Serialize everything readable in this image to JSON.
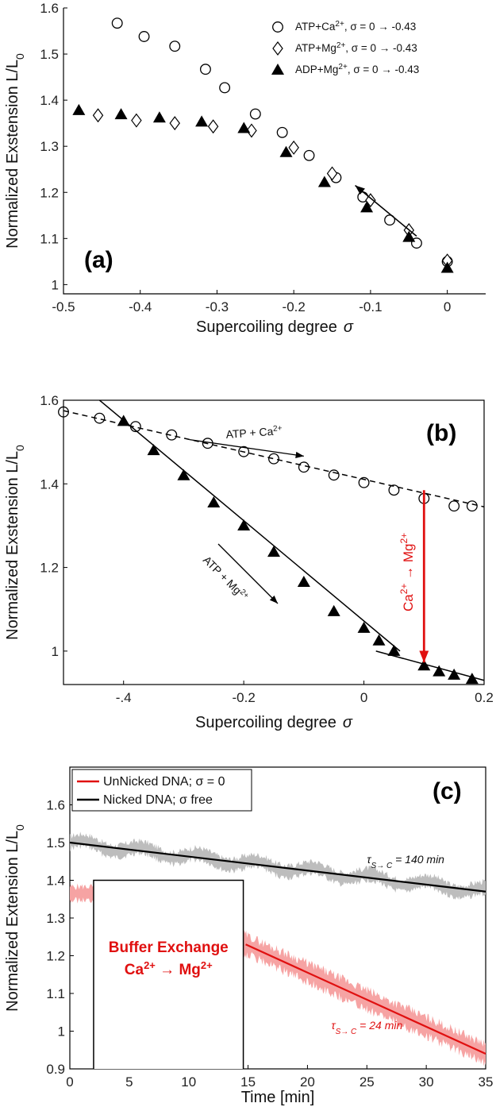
{
  "colors": {
    "red": "#e01010",
    "red_band": "#f6a3a3",
    "gray_band": "#bdbdbd",
    "black": "#000000"
  },
  "chart_data": [
    {
      "type": "scatter",
      "panel_label": "(a)",
      "xlabel": "Supercoiling degree",
      "xlabel_symbol": "σ",
      "ylabel": "Normalized Exstension  L/L",
      "ylabel_sub": "0",
      "xlim": [
        -0.5,
        0.05
      ],
      "ylim": [
        0.98,
        1.6
      ],
      "xticks": [
        -0.5,
        -0.4,
        -0.3,
        -0.2,
        -0.1,
        0
      ],
      "xtick_labels": [
        "-0.5",
        "-0.4",
        "-0.3",
        "-0.2",
        "-0.1",
        "0"
      ],
      "yticks": [
        1,
        1.1,
        1.2,
        1.3,
        1.4,
        1.5,
        1.6
      ],
      "ytick_labels": [
        "1",
        "1.1",
        "1.2",
        "1.3",
        "1.4",
        "1.5",
        "1.6"
      ],
      "legend_position": "top-right",
      "series": [
        {
          "name": "ATP+Ca2+, σ = 0 → -0.43",
          "legend_main": "ATP+Ca",
          "legend_sup": "2+",
          "legend_tail": ", σ = 0 → -0.43",
          "marker": "circle",
          "x": [
            -0.43,
            -0.395,
            -0.355,
            -0.315,
            -0.29,
            -0.25,
            -0.215,
            -0.18,
            -0.145,
            -0.11,
            -0.075,
            -0.04,
            0
          ],
          "y": [
            1.567,
            1.538,
            1.517,
            1.467,
            1.427,
            1.37,
            1.33,
            1.28,
            1.232,
            1.19,
            1.14,
            1.09,
            1.05
          ]
        },
        {
          "name": "ATP+Mg2+, σ = 0 → -0.43",
          "legend_main": "ATP+Mg",
          "legend_sup": "2+",
          "legend_tail": ", σ = 0 → -0.43",
          "marker": "diamond",
          "x": [
            -0.455,
            -0.405,
            -0.355,
            -0.305,
            -0.255,
            -0.2,
            -0.15,
            -0.1,
            -0.05,
            0
          ],
          "y": [
            1.367,
            1.356,
            1.35,
            1.343,
            1.334,
            1.297,
            1.241,
            1.183,
            1.118,
            1.052
          ]
        },
        {
          "name": "ADP+Mg2+, σ = 0 → -0.43",
          "legend_main": "ADP+Mg",
          "legend_sup": "2+",
          "legend_tail": ", σ = 0 → -0.43",
          "marker": "triangle",
          "x": [
            -0.48,
            -0.425,
            -0.375,
            -0.32,
            -0.265,
            -0.21,
            -0.16,
            -0.105,
            -0.05,
            0
          ],
          "y": [
            1.378,
            1.369,
            1.362,
            1.353,
            1.339,
            1.287,
            1.222,
            1.167,
            1.103,
            1.036
          ]
        }
      ],
      "arrow": {
        "from": [
          -0.04,
          1.105
        ],
        "to": [
          -0.12,
          1.215
        ]
      }
    },
    {
      "type": "scatter",
      "panel_label": "(b)",
      "xlabel": "Supercoiling degree",
      "xlabel_symbol": "σ",
      "ylabel": "Normalized Exstension  L/L",
      "ylabel_sub": "0",
      "xlim": [
        -0.5,
        0.2
      ],
      "ylim": [
        0.92,
        1.6
      ],
      "xticks": [
        -0.4,
        -0.2,
        0,
        0.2
      ],
      "xtick_labels": [
        "-.4",
        "-0.2",
        "0",
        "0.2"
      ],
      "yticks": [
        1,
        1.2,
        1.4,
        1.6
      ],
      "ytick_labels": [
        "1",
        "1.2",
        "1.4",
        "1.6"
      ],
      "series": [
        {
          "name": "ATP + Ca2+",
          "marker": "circle",
          "fit": "dashed",
          "x": [
            -0.5,
            -0.44,
            -0.38,
            -0.32,
            -0.26,
            -0.2,
            -0.15,
            -0.1,
            -0.05,
            0,
            0.05,
            0.1,
            0.15,
            0.18
          ],
          "y": [
            1.572,
            1.557,
            1.537,
            1.517,
            1.497,
            1.477,
            1.46,
            1.44,
            1.421,
            1.403,
            1.385,
            1.365,
            1.347,
            1.347
          ]
        },
        {
          "name": "ATP + Mg2+",
          "marker": "triangle",
          "fit": "solid",
          "x": [
            -0.4,
            -0.35,
            -0.3,
            -0.25,
            -0.2,
            -0.15,
            -0.1,
            -0.05,
            0,
            0.025,
            0.05,
            0.1,
            0.125,
            0.15,
            0.18
          ],
          "y": [
            1.55,
            1.48,
            1.42,
            1.355,
            1.3,
            1.237,
            1.165,
            1.095,
            1.055,
            1.025,
            1.0,
            0.965,
            0.951,
            0.943,
            0.933
          ]
        }
      ],
      "fit_lines": [
        {
          "style": "dashed",
          "from": [
            -0.5,
            1.575
          ],
          "to": [
            0.2,
            1.345
          ]
        },
        {
          "style": "solid",
          "from": [
            -0.44,
            1.6
          ],
          "to": [
            0.2,
            0.93
          ],
          "knee": [
            0.06,
            1.0
          ]
        }
      ],
      "annotations": [
        {
          "text": "ATP + Ca",
          "sup": "2+",
          "at": [
            -0.29,
            1.5
          ],
          "arrow_from": [
            -0.29,
            1.5
          ],
          "arrow_to": [
            -0.1,
            1.472
          ],
          "color": "#000000"
        },
        {
          "text": "ATP + Mg",
          "sup": "2+",
          "at": [
            -0.24,
            1.27
          ],
          "arrow_from": [
            -0.24,
            1.345
          ],
          "arrow_to": [
            -0.12,
            1.195
          ],
          "color": "#000000"
        },
        {
          "text": "Ca",
          "sup1": "2+",
          "mid": " → Mg",
          "sup2": "2+",
          "at": [
            0.075,
            1.18
          ],
          "arrow_from": [
            0.1,
            1.385
          ],
          "arrow_to": [
            0.1,
            0.965
          ],
          "color": "#e01010"
        }
      ]
    },
    {
      "type": "line",
      "panel_label": "(c)",
      "xlabel": "Time [min]",
      "ylabel": "Normalized Extension  L/L",
      "ylabel_sub": "0",
      "xlim": [
        0,
        35
      ],
      "ylim": [
        0.9,
        1.7
      ],
      "xticks": [
        0,
        5,
        10,
        15,
        20,
        25,
        30,
        35
      ],
      "xtick_labels": [
        "0",
        "5",
        "10",
        "15",
        "20",
        "25",
        "30",
        "35"
      ],
      "yticks": [
        0.9,
        1,
        1.1,
        1.2,
        1.3,
        1.4,
        1.5,
        1.6
      ],
      "ytick_labels": [
        "0.9",
        "1",
        "1.1",
        "1.2",
        "1.3",
        "1.4",
        "1.5",
        "1.6"
      ],
      "legend_position": "top-left",
      "series": [
        {
          "name": "UnNicked DNA; σ = 0",
          "color": "#e01010",
          "fit_from": [
            14.8,
            1.23
          ],
          "fit_to": [
            35,
            0.94
          ]
        },
        {
          "name": "Nicked DNA; σ free",
          "color": "#000000",
          "fit_from": [
            0,
            1.5
          ],
          "fit_to": [
            35,
            1.37
          ]
        }
      ],
      "tau_labels": [
        {
          "tau": "τ",
          "sub": "S→ C",
          "value": " = 140 min",
          "at": [
            25,
            1.445
          ],
          "color": "#111111"
        },
        {
          "tau": "τ",
          "sub": "S→ C",
          "value": " = 24 min",
          "at": [
            22,
            1.005
          ],
          "color": "#e01010"
        }
      ],
      "buffer_box": {
        "x": [
          2,
          14.6
        ],
        "y_top": 1.4,
        "line1": "Buffer Exchange",
        "line2_a": "Ca",
        "line2_sup1": "2+",
        "line2_mid": " → Mg",
        "line2_sup2": "2+"
      }
    }
  ]
}
